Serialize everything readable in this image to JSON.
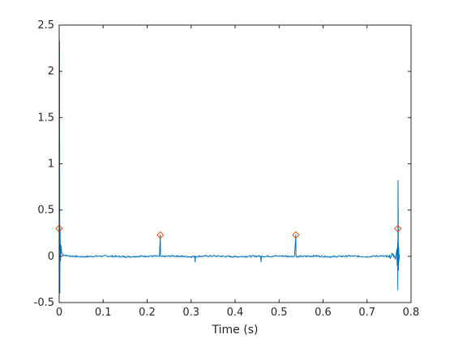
{
  "chart_data": {
    "type": "line",
    "title": "",
    "xlabel": "Time (s)",
    "ylabel": "",
    "xlim": [
      0,
      0.8
    ],
    "ylim": [
      -0.5,
      2.5
    ],
    "grid": false,
    "box": true,
    "x_ticks": [
      "0",
      "0.1",
      "0.2",
      "0.3",
      "0.4",
      "0.5",
      "0.6",
      "0.7",
      "0.8"
    ],
    "y_ticks": [
      "-0.5",
      "0",
      "0.5",
      "1",
      "1.5",
      "2",
      "2.5"
    ],
    "x_tick_values": [
      0,
      0.1,
      0.2,
      0.3,
      0.4,
      0.5,
      0.6,
      0.7,
      0.8
    ],
    "y_tick_values": [
      -0.5,
      0,
      0.5,
      1,
      1.5,
      2,
      2.5
    ],
    "series": [
      {
        "type": "line",
        "color": "#0072bd",
        "x": [
          0.0,
          0.0008,
          0.0015,
          0.002,
          0.003,
          0.004,
          0.006,
          0.01,
          0.02,
          0.05,
          0.1,
          0.15,
          0.2,
          0.228,
          0.23,
          0.2305,
          0.232,
          0.26,
          0.3,
          0.308,
          0.309,
          0.31,
          0.35,
          0.4,
          0.45,
          0.458,
          0.459,
          0.46,
          0.5,
          0.535,
          0.538,
          0.5385,
          0.54,
          0.58,
          0.62,
          0.66,
          0.7,
          0.73,
          0.75,
          0.76,
          0.765,
          0.768,
          0.7685,
          0.7695,
          0.77,
          0.7705,
          0.7715,
          0.772,
          0.7725,
          0.7735
        ],
        "y": [
          0.0,
          2.33,
          -0.4,
          0.3,
          -0.05,
          0.12,
          0.03,
          0.015,
          0.005,
          -0.005,
          0.003,
          -0.004,
          0.002,
          0.0,
          0.23,
          0.0,
          -0.003,
          0.004,
          -0.005,
          0.0,
          -0.06,
          0.0,
          0.003,
          -0.004,
          0.002,
          0.0,
          -0.06,
          0.0,
          0.003,
          0.0,
          0.23,
          0.0,
          -0.004,
          0.004,
          -0.005,
          0.003,
          -0.004,
          0.005,
          -0.01,
          0.02,
          -0.03,
          0.08,
          -0.1,
          0.15,
          -0.36,
          0.82,
          -0.15,
          0.1,
          -0.05,
          0.02
        ]
      },
      {
        "type": "markers",
        "marker": "diamond",
        "color": "#d95319",
        "x": [
          0.0,
          0.23,
          0.538,
          0.77
        ],
        "y": [
          0.3,
          0.23,
          0.23,
          0.3
        ]
      }
    ]
  }
}
